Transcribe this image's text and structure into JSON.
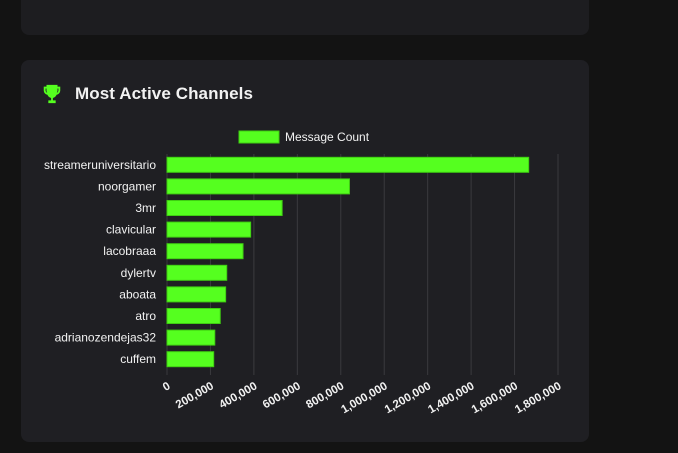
{
  "colors": {
    "background": "#131313",
    "card": "#1f1f23",
    "accent": "#55ff1f",
    "accent_border": "#3fcf12",
    "text": "#f2f2f2",
    "grid": "#3a3a3e"
  },
  "header": {
    "icon": "trophy-icon",
    "title": "Most Active Channels"
  },
  "chart_data": {
    "type": "bar",
    "orientation": "horizontal",
    "legend": {
      "label": "Message Count",
      "placement": "top-center"
    },
    "categories": [
      "streameruniversitario",
      "noorgamer",
      "3mr",
      "clavicular",
      "lacobraaa",
      "dylertv",
      "aboata",
      "atro",
      "adrianozendejas32",
      "cuffem"
    ],
    "series": [
      {
        "name": "Message Count",
        "values": [
          1665000,
          840000,
          530000,
          385000,
          350000,
          275000,
          270000,
          245000,
          220000,
          215000
        ]
      }
    ],
    "xlim": [
      0,
      1800000
    ],
    "xticks": [
      0,
      200000,
      400000,
      600000,
      800000,
      1000000,
      1200000,
      1400000,
      1600000,
      1800000
    ],
    "xtick_labels": [
      "0",
      "200,000",
      "400,000",
      "600,000",
      "800,000",
      "1,000,000",
      "1,200,000",
      "1,400,000",
      "1,600,000",
      "1,800,000"
    ],
    "grid": true
  }
}
